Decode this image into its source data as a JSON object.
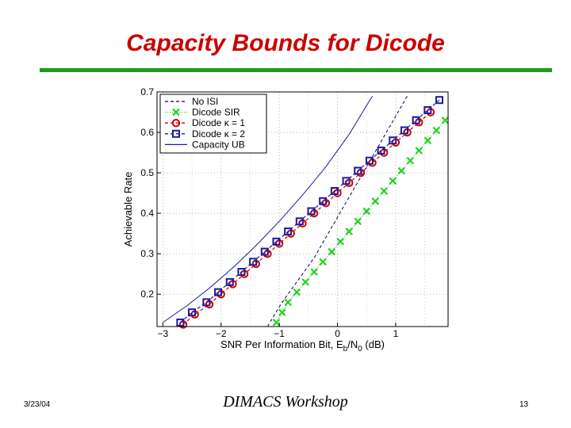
{
  "slide": {
    "title": "Capacity Bounds for Dicode",
    "footer_date": "3/23/04",
    "footer_center": "DIMACS Workshop",
    "footer_page": "13"
  },
  "colors": {
    "title": "#cc0000",
    "rule": "#1e9a1e",
    "no_isi": "#000066",
    "sir": "#1fd41f",
    "k1": "#cc0000",
    "k2": "#1a1aa0",
    "ub": "#1a1aa0"
  },
  "chart_data": {
    "type": "line",
    "xlabel_main": "SNR Per Information Bit, E",
    "xlabel_sub1": "b",
    "xlabel_mid": "/N",
    "xlabel_sub2": "0",
    "xlabel_tail": " (dB)",
    "ylabel": "Achievable Rate",
    "xlim": [
      -3.1,
      1.9
    ],
    "ylim": [
      0.12,
      0.7
    ],
    "xticks": [
      -3,
      -2,
      -1,
      0,
      1
    ],
    "xtick_labels": [
      "−3",
      "−2",
      "−1",
      "0",
      "1"
    ],
    "yticks": [
      0.2,
      0.3,
      0.4,
      0.5,
      0.6,
      0.7
    ],
    "ytick_labels": [
      "0.2",
      "0.3",
      "0.4",
      "0.5",
      "0.6",
      "0.7"
    ],
    "grid": true,
    "legend_position": "top-left",
    "series": [
      {
        "name": "No ISI",
        "style": "dashed",
        "marker": "none",
        "x": [
          -1.2,
          -1.08,
          -0.95,
          -0.8,
          -0.6,
          -0.4,
          -0.2,
          0.0,
          0.2,
          0.4,
          0.6,
          0.8,
          1.0,
          1.2
        ],
        "y": [
          0.12,
          0.15,
          0.18,
          0.21,
          0.25,
          0.29,
          0.34,
          0.39,
          0.44,
          0.49,
          0.54,
          0.59,
          0.64,
          0.69
        ]
      },
      {
        "name": "Dicode SIR",
        "style": "dotted",
        "marker": "x",
        "x": [
          -1.05,
          -0.95,
          -0.85,
          -0.7,
          -0.55,
          -0.4,
          -0.25,
          -0.1,
          0.05,
          0.2,
          0.35,
          0.5,
          0.65,
          0.8,
          0.95,
          1.1,
          1.25,
          1.4,
          1.55,
          1.7,
          1.85
        ],
        "y": [
          0.13,
          0.155,
          0.18,
          0.205,
          0.23,
          0.255,
          0.28,
          0.305,
          0.33,
          0.355,
          0.38,
          0.405,
          0.43,
          0.455,
          0.48,
          0.505,
          0.53,
          0.555,
          0.58,
          0.605,
          0.63
        ]
      },
      {
        "name": "Dicode κ = 1",
        "style": "dashed",
        "marker": "circle",
        "x": [
          -2.65,
          -2.45,
          -2.2,
          -2.0,
          -1.8,
          -1.6,
          -1.4,
          -1.2,
          -1.0,
          -0.8,
          -0.6,
          -0.4,
          -0.2,
          0.0,
          0.2,
          0.4,
          0.6,
          0.8,
          1.0,
          1.2,
          1.4,
          1.6
        ],
        "y": [
          0.125,
          0.15,
          0.175,
          0.2,
          0.225,
          0.25,
          0.275,
          0.3,
          0.325,
          0.35,
          0.375,
          0.4,
          0.425,
          0.45,
          0.475,
          0.5,
          0.525,
          0.55,
          0.575,
          0.6,
          0.625,
          0.65
        ]
      },
      {
        "name": "Dicode κ = 2",
        "style": "dashed",
        "marker": "square",
        "x": [
          -2.7,
          -2.5,
          -2.25,
          -2.05,
          -1.85,
          -1.65,
          -1.45,
          -1.25,
          -1.05,
          -0.85,
          -0.65,
          -0.45,
          -0.25,
          -0.05,
          0.15,
          0.35,
          0.55,
          0.75,
          0.95,
          1.15,
          1.35,
          1.55,
          1.75
        ],
        "y": [
          0.13,
          0.155,
          0.18,
          0.205,
          0.23,
          0.255,
          0.28,
          0.305,
          0.33,
          0.355,
          0.38,
          0.405,
          0.43,
          0.455,
          0.48,
          0.505,
          0.53,
          0.555,
          0.58,
          0.605,
          0.63,
          0.655,
          0.68
        ]
      },
      {
        "name": "Capacity UB",
        "style": "solid",
        "marker": "none",
        "x": [
          -3.0,
          -2.6,
          -2.2,
          -1.8,
          -1.4,
          -1.0,
          -0.6,
          -0.2,
          0.2,
          0.6
        ],
        "y": [
          0.13,
          0.17,
          0.215,
          0.265,
          0.32,
          0.38,
          0.445,
          0.515,
          0.595,
          0.69
        ]
      }
    ]
  }
}
